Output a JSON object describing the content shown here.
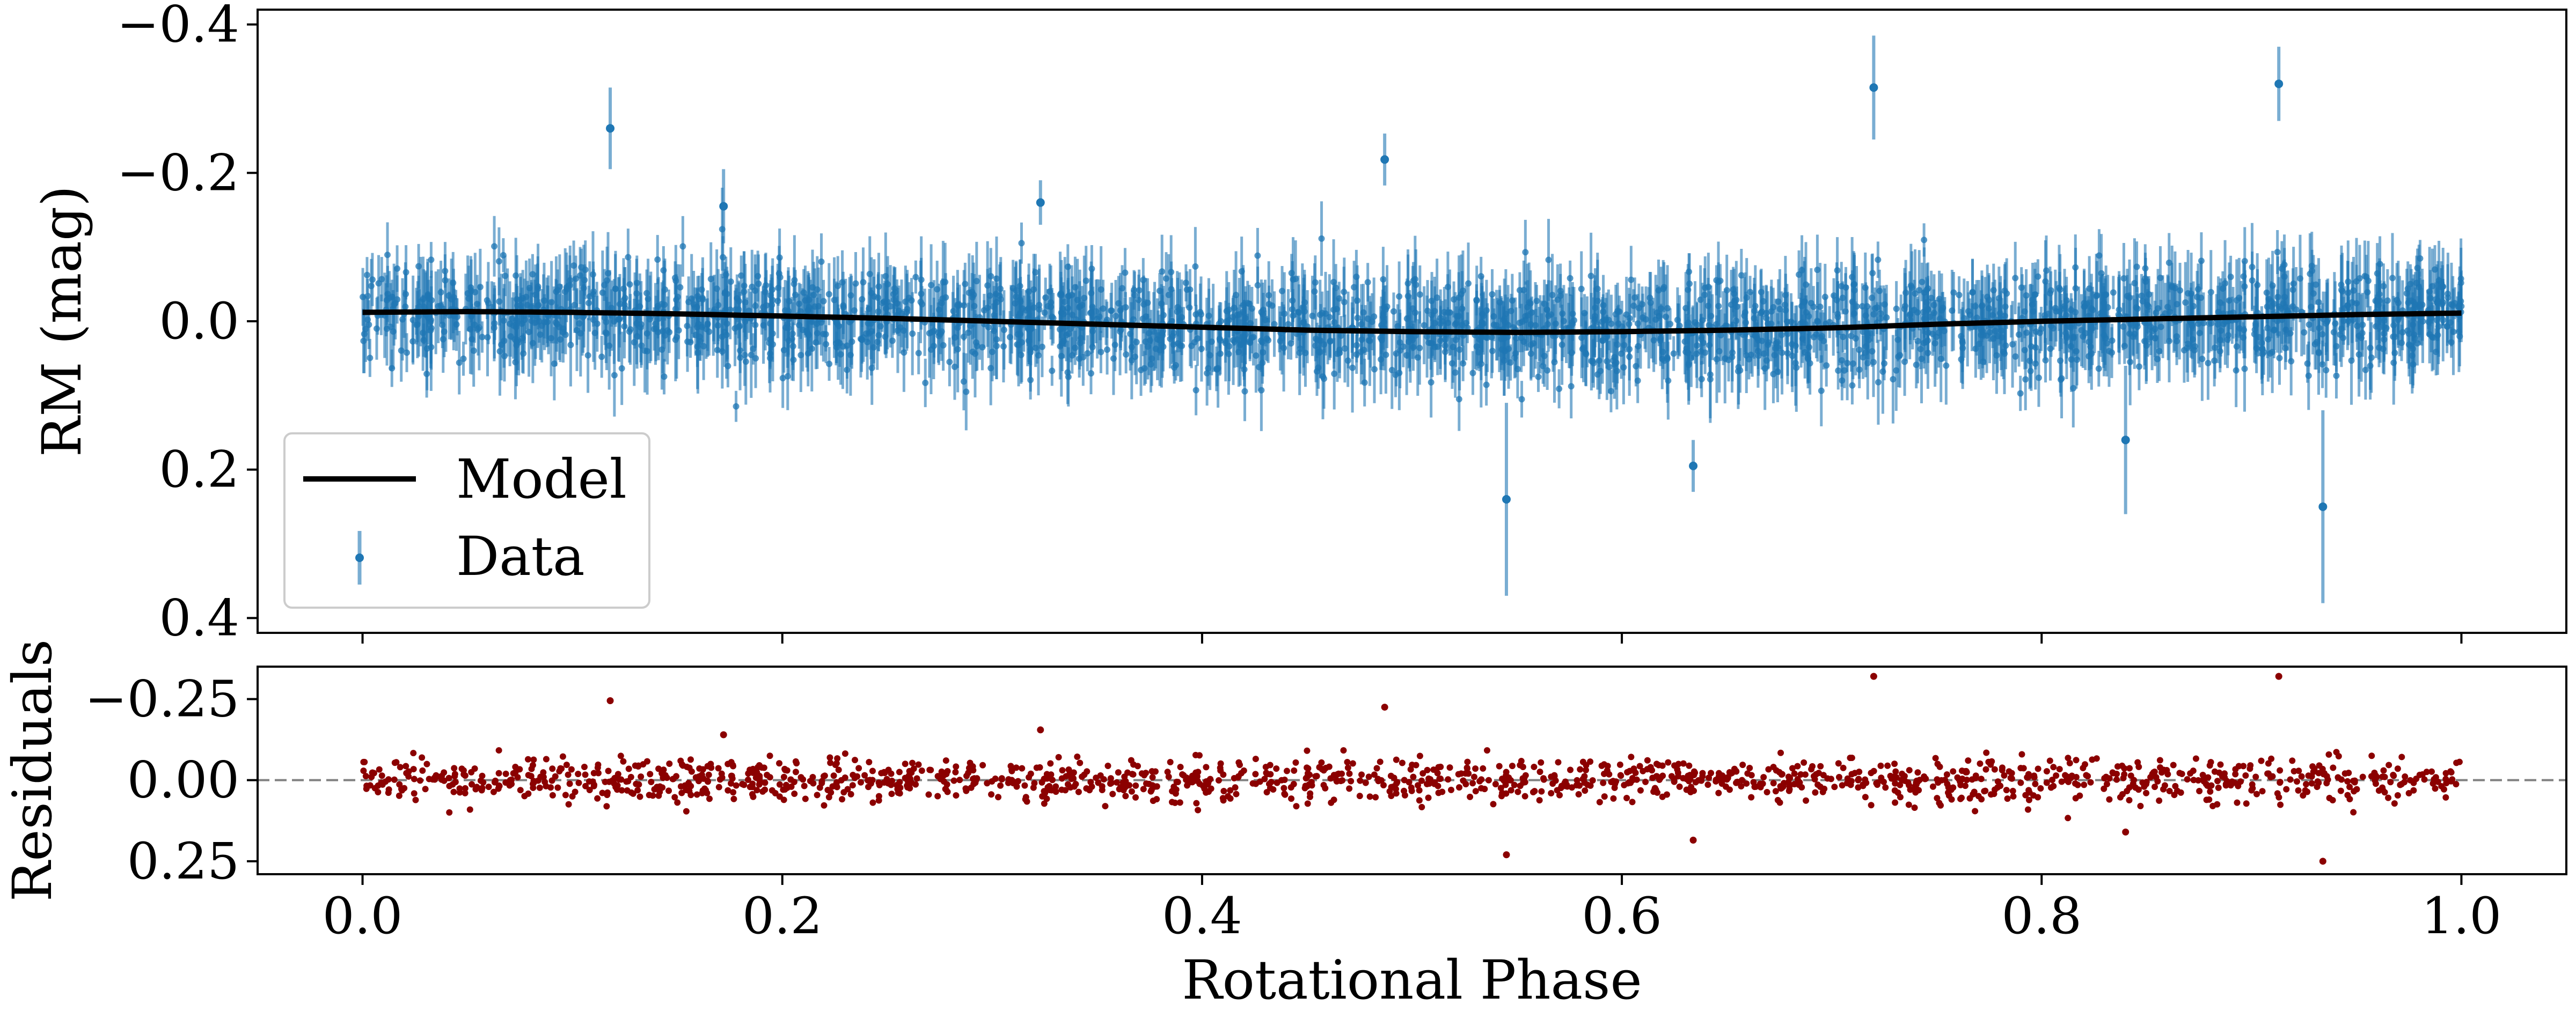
{
  "chart_data": [
    {
      "type": "scatter",
      "panel": "top",
      "xlabel": "",
      "ylabel": "RM (mag)",
      "xlim": [
        -0.05,
        1.05
      ],
      "ylim": [
        0.42,
        -0.42
      ],
      "y_inverted": true,
      "xticks": [
        0.0,
        0.2,
        0.4,
        0.6,
        0.8,
        1.0
      ],
      "xtick_labels_visible": false,
      "yticks": [
        -0.4,
        -0.2,
        0.0,
        0.2,
        0.4
      ],
      "ytick_labels": [
        "−0.4",
        "−0.2",
        "0.0",
        "0.2",
        "0.4"
      ],
      "legend": {
        "position": "lower-left",
        "entries": [
          {
            "label": "Model",
            "kind": "line",
            "color": "#000000"
          },
          {
            "label": "Data",
            "kind": "errorbar",
            "color": "#1f77b4"
          }
        ]
      },
      "series": [
        {
          "name": "Model",
          "kind": "line",
          "color": "#000000",
          "x": [
            0.0,
            0.05,
            0.1,
            0.15,
            0.2,
            0.25,
            0.3,
            0.35,
            0.4,
            0.45,
            0.5,
            0.55,
            0.6,
            0.65,
            0.7,
            0.75,
            0.8,
            0.85,
            0.9,
            0.95,
            1.0
          ],
          "y": [
            -0.012,
            -0.013,
            -0.012,
            -0.01,
            -0.007,
            -0.004,
            0.0,
            0.004,
            0.008,
            0.012,
            0.014,
            0.015,
            0.014,
            0.012,
            0.009,
            0.004,
            0.0,
            -0.003,
            -0.006,
            -0.009,
            -0.011
          ]
        },
        {
          "name": "Data",
          "kind": "errorbar",
          "color": "#1f77b4",
          "n_points": 2200,
          "scatter_sigma": 0.033,
          "typical_error": 0.045,
          "notable_points": [
            {
              "x": 0.118,
              "y": -0.26,
              "err": 0.055
            },
            {
              "x": 0.172,
              "y": -0.155,
              "err": 0.05
            },
            {
              "x": 0.323,
              "y": -0.16,
              "err": 0.03
            },
            {
              "x": 0.487,
              "y": -0.218,
              "err": 0.035
            },
            {
              "x": 0.72,
              "y": -0.315,
              "err": 0.07
            },
            {
              "x": 0.913,
              "y": -0.32,
              "err": 0.05
            },
            {
              "x": 0.545,
              "y": 0.24,
              "err": 0.13
            },
            {
              "x": 0.634,
              "y": 0.195,
              "err": 0.035
            },
            {
              "x": 0.84,
              "y": 0.16,
              "err": 0.1
            },
            {
              "x": 0.934,
              "y": 0.25,
              "err": 0.13
            }
          ]
        }
      ]
    },
    {
      "type": "scatter",
      "panel": "bottom",
      "xlabel": "Rotational Phase",
      "ylabel": "Residuals",
      "xlim": [
        -0.05,
        1.05
      ],
      "ylim": [
        0.29,
        -0.35
      ],
      "y_inverted": true,
      "xticks": [
        0.0,
        0.2,
        0.4,
        0.6,
        0.8,
        1.0
      ],
      "xtick_labels": [
        "0.0",
        "0.2",
        "0.4",
        "0.6",
        "0.8",
        "1.0"
      ],
      "yticks": [
        -0.25,
        0.0,
        0.25
      ],
      "ytick_labels": [
        "−0.25",
        "0.00",
        "0.25"
      ],
      "reference_line": {
        "y": 0.0,
        "style": "dashed",
        "color": "#808080"
      },
      "series": [
        {
          "name": "Residuals",
          "kind": "points",
          "color": "#8b0000",
          "n_points": 1500,
          "scatter_sigma": 0.033,
          "notable_points": [
            {
              "x": 0.118,
              "y": -0.245
            },
            {
              "x": 0.172,
              "y": -0.14
            },
            {
              "x": 0.323,
              "y": -0.155
            },
            {
              "x": 0.487,
              "y": -0.225
            },
            {
              "x": 0.72,
              "y": -0.32
            },
            {
              "x": 0.913,
              "y": -0.32
            },
            {
              "x": 0.545,
              "y": 0.23
            },
            {
              "x": 0.634,
              "y": 0.185
            },
            {
              "x": 0.84,
              "y": 0.16
            },
            {
              "x": 0.934,
              "y": 0.25
            }
          ]
        }
      ]
    }
  ]
}
